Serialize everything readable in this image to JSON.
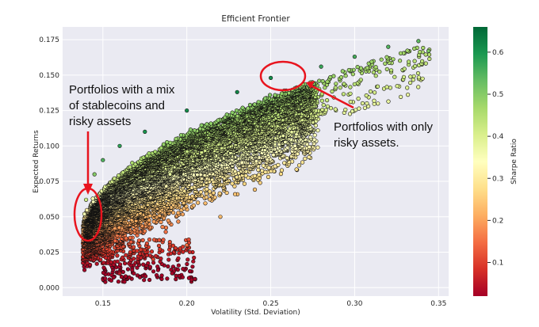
{
  "chart_data": {
    "type": "scatter",
    "title": "Efficient Frontier",
    "xlabel": "Volatility (Std. Deviation)",
    "ylabel": "Expected Returns",
    "xlim": [
      0.126,
      0.356
    ],
    "ylim": [
      -0.006,
      0.184
    ],
    "x_ticks": [
      0.15,
      0.2,
      0.25,
      0.3,
      0.35
    ],
    "x_tick_labels": [
      "0.15",
      "0.20",
      "0.25",
      "0.30",
      "0.35"
    ],
    "y_ticks": [
      0.0,
      0.025,
      0.05,
      0.075,
      0.1,
      0.125,
      0.15,
      0.175
    ],
    "y_tick_labels": [
      "0.000",
      "0.025",
      "0.050",
      "0.075",
      "0.100",
      "0.125",
      "0.150",
      "0.175"
    ],
    "grid": true,
    "background": "#eaeaf2",
    "point_edge_color": "#111111",
    "colorbar": {
      "label": "Sharpe Ratio",
      "colormap": "RdYlGn",
      "range": [
        0.02,
        0.66
      ],
      "ticks": [
        0.1,
        0.2,
        0.3,
        0.4,
        0.5,
        0.6
      ],
      "tick_labels": [
        "0.1",
        "0.2",
        "0.3",
        "0.4",
        "0.5",
        "0.6"
      ]
    },
    "point_count_visible": "approx. 10000",
    "sampled_points": [
      {
        "x": 0.139,
        "y": 0.052,
        "sharpe": 0.36
      },
      {
        "x": 0.14,
        "y": 0.062,
        "sharpe": 0.42
      },
      {
        "x": 0.142,
        "y": 0.072,
        "sharpe": 0.47
      },
      {
        "x": 0.145,
        "y": 0.08,
        "sharpe": 0.5
      },
      {
        "x": 0.15,
        "y": 0.09,
        "sharpe": 0.55
      },
      {
        "x": 0.16,
        "y": 0.1,
        "sharpe": 0.58
      },
      {
        "x": 0.175,
        "y": 0.11,
        "sharpe": 0.6
      },
      {
        "x": 0.2,
        "y": 0.125,
        "sharpe": 0.61
      },
      {
        "x": 0.23,
        "y": 0.138,
        "sharpe": 0.62
      },
      {
        "x": 0.25,
        "y": 0.148,
        "sharpe": 0.61
      },
      {
        "x": 0.28,
        "y": 0.156,
        "sharpe": 0.57
      },
      {
        "x": 0.3,
        "y": 0.163,
        "sharpe": 0.56
      },
      {
        "x": 0.32,
        "y": 0.17,
        "sharpe": 0.55
      },
      {
        "x": 0.338,
        "y": 0.174,
        "sharpe": 0.54
      },
      {
        "x": 0.344,
        "y": 0.167,
        "sharpe": 0.51
      },
      {
        "x": 0.155,
        "y": 0.005,
        "sharpe": 0.02
      },
      {
        "x": 0.16,
        "y": 0.01,
        "sharpe": 0.05
      },
      {
        "x": 0.18,
        "y": 0.02,
        "sharpe": 0.1
      },
      {
        "x": 0.2,
        "y": 0.03,
        "sharpe": 0.15
      },
      {
        "x": 0.22,
        "y": 0.05,
        "sharpe": 0.23
      },
      {
        "x": 0.19,
        "y": 0.08,
        "sharpe": 0.38
      }
    ],
    "annotations": [
      {
        "lines": [
          "Portfolios with a mix",
          "of stablecoins and",
          "risky assets"
        ]
      },
      {
        "lines": [
          "Portfolios with only",
          "risky assets."
        ]
      }
    ]
  }
}
